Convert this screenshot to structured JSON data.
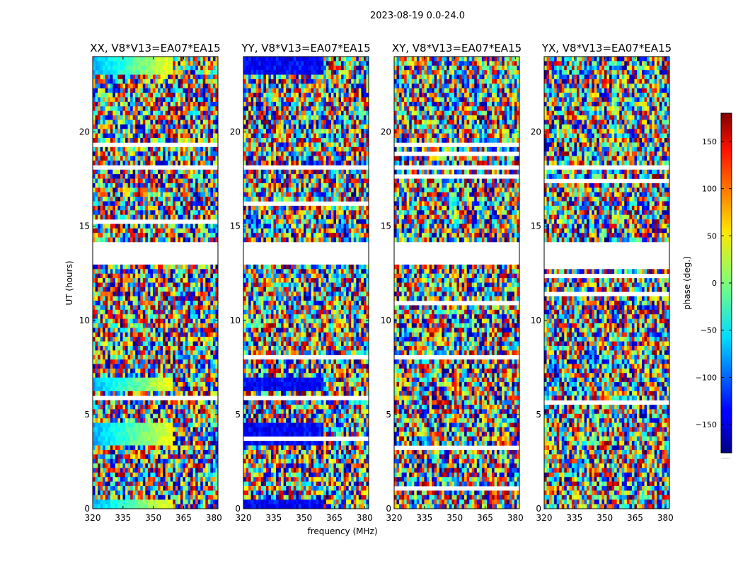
{
  "figure": {
    "suptitle": "2023-08-19 0.0-24.0",
    "xlabel": "frequency (MHz)",
    "ylabel": "UT (hours)",
    "colorbar_label": "phase (deg.)",
    "colorbar_footer": "......"
  },
  "chart_data": {
    "type": "heatmap",
    "colormap": "jet",
    "xlim": [
      320,
      382
    ],
    "ylim": [
      0,
      24
    ],
    "xticks": [
      "320",
      "335",
      "350",
      "365",
      "380"
    ],
    "yticks": [
      "0",
      "5",
      "10",
      "15",
      "20"
    ],
    "colorbar": {
      "range": [
        -180,
        180
      ],
      "ticks": [
        "150",
        "100",
        "50",
        "0",
        "−50",
        "−100",
        "−150"
      ]
    },
    "panels": [
      {
        "title": "XX, V8*V13=EA07*EA15"
      },
      {
        "title": "YY, V8*V13=EA07*EA15"
      },
      {
        "title": "XY, V8*V13=EA07*EA15"
      },
      {
        "title": "YX, V8*V13=EA07*EA15"
      }
    ]
  }
}
